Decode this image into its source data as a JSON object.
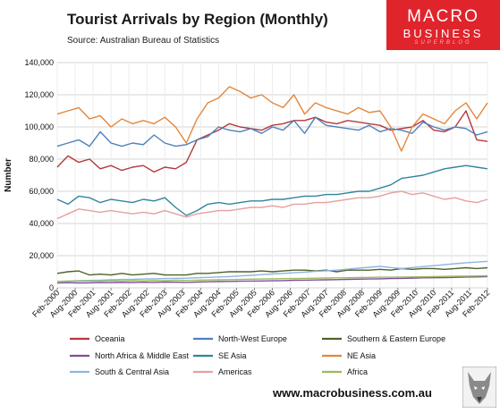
{
  "header": {
    "title": "Tourist Arrivals by Region (Monthly)",
    "source": "Source: Australian Bureau of Statistics"
  },
  "brand": {
    "line1": "MACRO",
    "line2": "BUSINESS",
    "line3": "SUPERBLOG",
    "color": "#e0242c",
    "logo_icon": "wolf-logo-icon"
  },
  "footer": {
    "website": "www.macrobusiness.com.au"
  },
  "chart_data": {
    "type": "line",
    "title": "Tourist Arrivals by Region (Monthly)",
    "ylabel": "Number",
    "xlabel": "",
    "ylim": [
      0,
      140000
    ],
    "yticks": [
      0,
      20000,
      40000,
      60000,
      80000,
      100000,
      120000,
      140000
    ],
    "ytick_labels": [
      "0",
      "20,000",
      "40,000",
      "60,000",
      "80,000",
      "100,000",
      "120,000",
      "140,000"
    ],
    "x_tick_labels": [
      "Feb-2000",
      "Aug-2000",
      "Feb-2001",
      "Aug-2001",
      "Feb-2002",
      "Aug-2002",
      "Feb-2003",
      "Aug-2003",
      "Feb-2004",
      "Aug-2004",
      "Feb-2005",
      "Aug-2005",
      "Feb-2006",
      "Aug-2006",
      "Feb-2007",
      "Aug-2007",
      "Feb-2008",
      "Aug-2008",
      "Feb-2009",
      "Aug-2009",
      "Feb-2010",
      "Aug-2010",
      "Feb-2011",
      "Aug-2011",
      "Feb-2012"
    ],
    "grid": true,
    "legend_position": "bottom",
    "series": [
      {
        "name": "Oceania",
        "color": "#b5393c",
        "values": [
          75000,
          82000,
          78000,
          80000,
          74000,
          76000,
          73000,
          75000,
          76000,
          72000,
          75000,
          74000,
          78000,
          92000,
          95000,
          98000,
          102000,
          100000,
          99000,
          98000,
          101000,
          102000,
          104000,
          104000,
          106000,
          103000,
          102000,
          104000,
          103000,
          102000,
          101000,
          98000,
          99000,
          100000,
          104000,
          98000,
          97000,
          100000,
          110000,
          92000,
          91000
        ]
      },
      {
        "name": "North-West Europe",
        "color": "#4f81bd",
        "values": [
          88000,
          90000,
          92000,
          88000,
          97000,
          90000,
          88000,
          90000,
          89000,
          95000,
          90000,
          88000,
          89000,
          92000,
          94000,
          100000,
          98000,
          97000,
          99000,
          96000,
          100000,
          98000,
          104000,
          96000,
          106000,
          101000,
          100000,
          99000,
          98000,
          101000,
          97000,
          99000,
          98000,
          96000,
          103000,
          100000,
          98000,
          100000,
          99000,
          95000,
          97000
        ]
      },
      {
        "name": "Southern & Eastern Europe",
        "color": "#4f6228",
        "values": [
          9000,
          10000,
          10500,
          8000,
          8500,
          8000,
          9000,
          8000,
          8500,
          9000,
          8000,
          8000,
          8000,
          9000,
          9000,
          9500,
          10000,
          10000,
          10000,
          10500,
          10000,
          10500,
          11000,
          11000,
          10500,
          11000,
          10000,
          11000,
          11000,
          11000,
          11500,
          11000,
          12000,
          11500,
          12000,
          12000,
          11500,
          12000,
          12500,
          12000,
          12500
        ]
      },
      {
        "name": "North Africa & Middle East",
        "color": "#7f4f9e",
        "values": [
          3000,
          3200,
          3000,
          3100,
          3300,
          3200,
          3400,
          3300,
          3500,
          3400,
          3600,
          3500,
          3400,
          3600,
          3800,
          3900,
          4000,
          4100,
          4200,
          4300,
          4400,
          4500,
          4700,
          4800,
          4900,
          5000,
          5100,
          5300,
          5400,
          5500,
          5600,
          5800,
          5900,
          6000,
          6200,
          6300,
          6400,
          6500,
          6700,
          6800,
          7000
        ]
      },
      {
        "name": "SE Asia",
        "color": "#31859c",
        "values": [
          55000,
          52000,
          57000,
          56000,
          53000,
          55000,
          54000,
          53000,
          55000,
          54000,
          56000,
          50000,
          45000,
          48000,
          52000,
          53000,
          52000,
          53000,
          54000,
          54000,
          55000,
          55000,
          56000,
          57000,
          57000,
          58000,
          58000,
          59000,
          60000,
          60000,
          62000,
          64000,
          68000,
          69000,
          70000,
          72000,
          74000,
          75000,
          76000,
          75000,
          74000
        ]
      },
      {
        "name": "NE Asia",
        "color": "#e3873a",
        "values": [
          108000,
          110000,
          112000,
          105000,
          107000,
          100000,
          105000,
          102000,
          104000,
          102000,
          106000,
          100000,
          90000,
          105000,
          115000,
          118000,
          125000,
          122000,
          118000,
          120000,
          115000,
          112000,
          120000,
          108000,
          115000,
          112000,
          110000,
          108000,
          112000,
          109000,
          110000,
          100000,
          85000,
          100000,
          108000,
          105000,
          102000,
          110000,
          115000,
          105000,
          115000
        ]
      },
      {
        "name": "South & Central Asia",
        "color": "#8db4e2",
        "values": [
          4000,
          4200,
          4500,
          4600,
          4800,
          5000,
          5200,
          5300,
          5500,
          5600,
          5800,
          5900,
          6000,
          6300,
          6500,
          6800,
          7000,
          7400,
          7800,
          8200,
          8600,
          9000,
          9400,
          9800,
          10200,
          10600,
          11000,
          11600,
          12200,
          12800,
          13400,
          12600,
          12000,
          12600,
          13200,
          13800,
          14400,
          15000,
          15600,
          16000,
          16500
        ]
      },
      {
        "name": "Americas",
        "color": "#e6a0a0",
        "values": [
          43000,
          46000,
          49000,
          48000,
          47000,
          48000,
          47000,
          46000,
          47000,
          46000,
          48000,
          46000,
          44000,
          46000,
          47000,
          48000,
          48000,
          49000,
          50000,
          50000,
          51000,
          50000,
          52000,
          52000,
          53000,
          53000,
          54000,
          55000,
          56000,
          56000,
          57000,
          59000,
          60000,
          58000,
          59000,
          57000,
          55000,
          56000,
          54000,
          53000,
          55000
        ]
      },
      {
        "name": "Africa",
        "color": "#9bbb59",
        "values": [
          4000,
          4200,
          4100,
          4300,
          4200,
          4400,
          4300,
          4500,
          4400,
          4600,
          4500,
          4700,
          4600,
          4800,
          4900,
          5000,
          5100,
          5200,
          5400,
          5500,
          5600,
          5700,
          5800,
          5900,
          6000,
          6100,
          6200,
          6300,
          6400,
          6500,
          6600,
          6600,
          6700,
          6800,
          6900,
          7000,
          7100,
          7200,
          7300,
          7400,
          7500
        ]
      }
    ]
  }
}
